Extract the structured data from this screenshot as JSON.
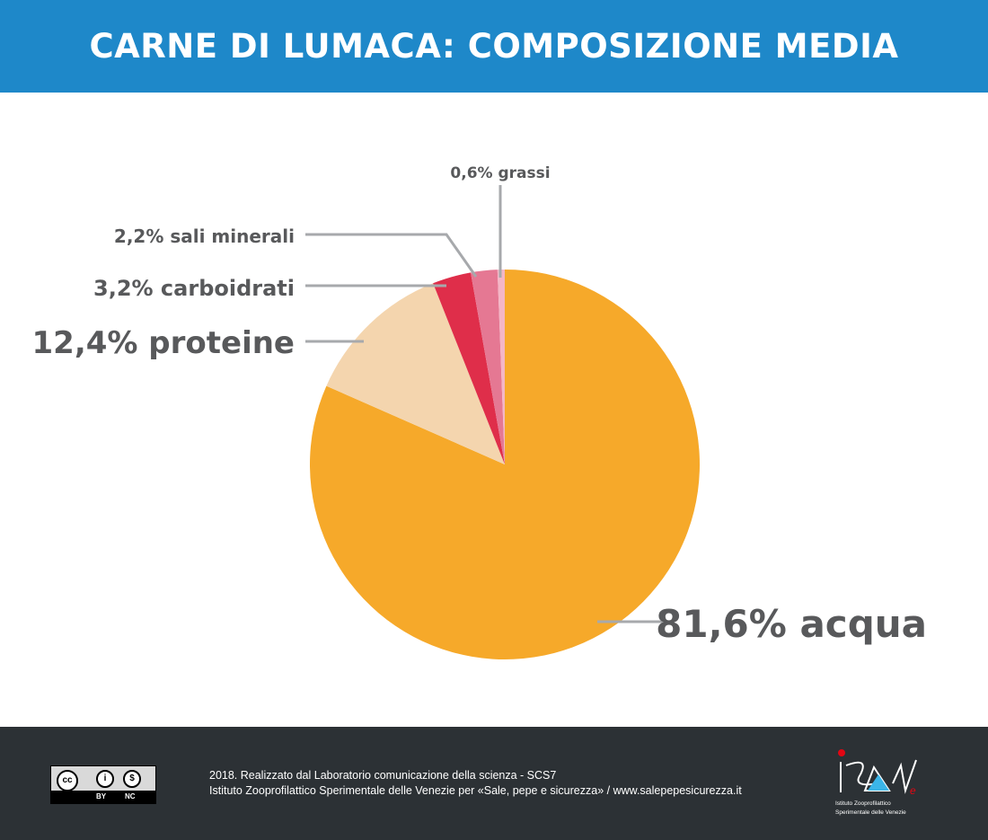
{
  "header": {
    "title": "CARNE DI LUMACA: COMPOSIZIONE MEDIA",
    "background": "#1E88C9"
  },
  "chart_data": {
    "type": "pie",
    "title": "CARNE DI LUMACA: COMPOSIZIONE MEDIA",
    "slices": [
      {
        "label": "81,6% acqua",
        "name": "acqua",
        "value": 81.6,
        "color": "#F6A92A"
      },
      {
        "label": "12,4% proteine",
        "name": "proteine",
        "value": 12.4,
        "color": "#F4D5AE"
      },
      {
        "label": "3,2% carboidrati",
        "name": "carboidrati",
        "value": 3.2,
        "color": "#DF2E4A"
      },
      {
        "label": "2,2% sali minerali",
        "name": "sali minerali",
        "value": 2.2,
        "color": "#E57893"
      },
      {
        "label": "0,6% grassi",
        "name": "grassi",
        "value": 0.6,
        "color": "#F4B6C6"
      }
    ],
    "start": "top",
    "direction": "clockwise"
  },
  "footer": {
    "license": {
      "by": "BY",
      "nc": "NC",
      "cc": "cc"
    },
    "line1": "2018. Realizzato dal Laboratorio comunicazione della scienza - SCS7",
    "line2": "Istituto Zooprofilattico Sperimentale delle Venezie per «Sale, pepe e sicurezza» / www.salepepesicurezza.it",
    "logo_text": [
      "Istituto Zooprofilattico",
      "Sperimentale delle Venezie"
    ]
  }
}
